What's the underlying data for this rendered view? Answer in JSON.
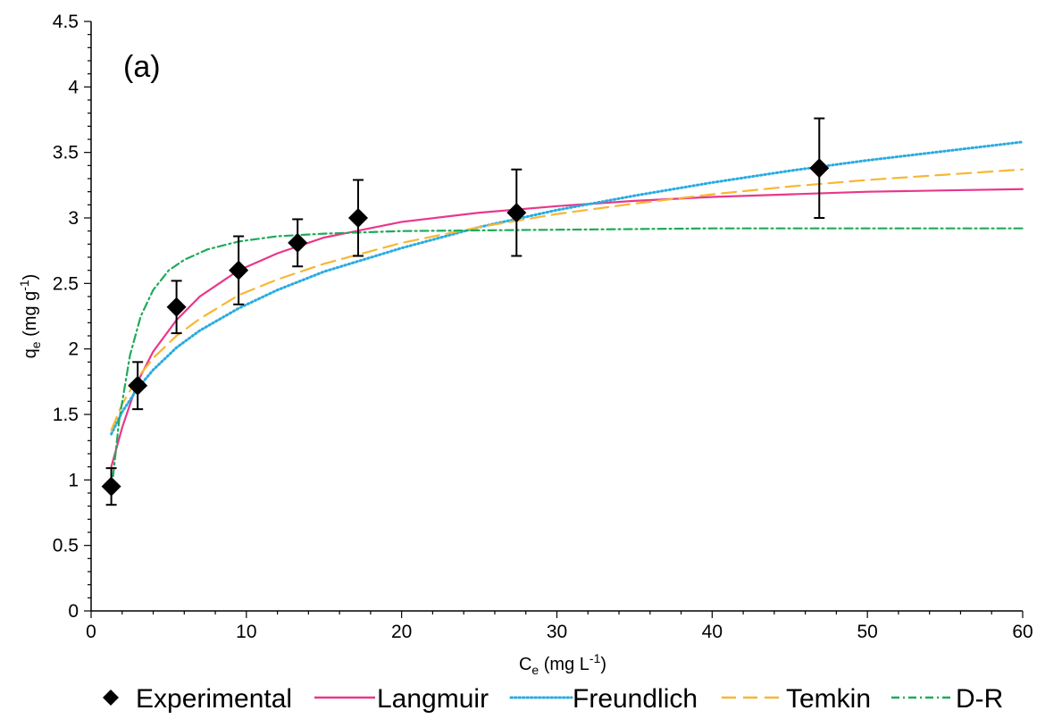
{
  "chart_data": {
    "type": "scatter",
    "title": "",
    "annotation": "(a)",
    "xlabel": {
      "main": "C",
      "sub": "e",
      "rest": " (mg L",
      "sup": "-1",
      "close": ")"
    },
    "ylabel": {
      "main": "q",
      "sub": "e",
      "rest": " (mg g",
      "sup": "-1",
      "close": ")"
    },
    "xlim": [
      0,
      60
    ],
    "ylim": [
      0,
      4.5
    ],
    "xticks": [
      0,
      10,
      20,
      30,
      40,
      50,
      60
    ],
    "yticks": [
      0,
      0.5,
      1,
      1.5,
      2,
      2.5,
      3,
      3.5,
      4,
      4.5
    ],
    "xtick_labels": [
      "0",
      "10",
      "20",
      "30",
      "40",
      "50",
      "60"
    ],
    "ytick_labels": [
      "0",
      "0.5",
      "1",
      "1.5",
      "2",
      "2.5",
      "3",
      "3.5",
      "4",
      "4.5"
    ],
    "grid": false,
    "legend_position": "bottom",
    "experimental": {
      "name": "Experimental",
      "color": "#000000",
      "x": [
        1.3,
        3.0,
        5.5,
        9.5,
        13.3,
        17.2,
        27.4,
        46.9
      ],
      "y": [
        0.95,
        1.72,
        2.32,
        2.6,
        2.81,
        3.0,
        3.04,
        3.38
      ],
      "err": [
        0.14,
        0.18,
        0.2,
        0.26,
        0.18,
        0.29,
        0.33,
        0.38
      ]
    },
    "series": [
      {
        "name": "Langmuir",
        "color": "#e8388a",
        "dash": "solid",
        "x": [
          1.3,
          2,
          3,
          4,
          5.5,
          7,
          9.5,
          12,
          15,
          20,
          25,
          30,
          35,
          40,
          45,
          50,
          55,
          60
        ],
        "y": [
          1.1,
          1.4,
          1.75,
          1.98,
          2.22,
          2.4,
          2.6,
          2.73,
          2.85,
          2.97,
          3.04,
          3.09,
          3.13,
          3.16,
          3.18,
          3.2,
          3.21,
          3.22
        ]
      },
      {
        "name": "Freundlich",
        "color": "#29abe2",
        "dash": "dotted",
        "x": [
          1.3,
          2,
          3,
          4,
          5.5,
          7,
          9.5,
          12,
          15,
          20,
          25,
          30,
          35,
          40,
          45,
          50,
          55,
          60
        ],
        "y": [
          1.35,
          1.52,
          1.7,
          1.84,
          2.01,
          2.14,
          2.31,
          2.45,
          2.59,
          2.77,
          2.93,
          3.06,
          3.17,
          3.27,
          3.36,
          3.44,
          3.51,
          3.58
        ]
      },
      {
        "name": "Temkin",
        "color": "#f7b733",
        "dash": "dashed",
        "x": [
          1.3,
          2,
          3,
          4,
          5.5,
          7,
          9.5,
          12,
          15,
          20,
          25,
          30,
          35,
          40,
          45,
          50,
          55,
          60
        ],
        "y": [
          1.38,
          1.58,
          1.78,
          1.93,
          2.1,
          2.23,
          2.41,
          2.53,
          2.65,
          2.81,
          2.93,
          3.03,
          3.11,
          3.18,
          3.24,
          3.29,
          3.33,
          3.37
        ]
      },
      {
        "name": "D-R",
        "color": "#1fab5a",
        "dash": "dashdot",
        "x": [
          1.3,
          1.8,
          2.5,
          3.2,
          4,
          5,
          6,
          7.5,
          9.5,
          12,
          15,
          20,
          30,
          40,
          50,
          60
        ],
        "y": [
          0.9,
          1.45,
          1.95,
          2.25,
          2.45,
          2.6,
          2.68,
          2.76,
          2.82,
          2.86,
          2.88,
          2.9,
          2.91,
          2.92,
          2.92,
          2.92
        ]
      }
    ]
  }
}
